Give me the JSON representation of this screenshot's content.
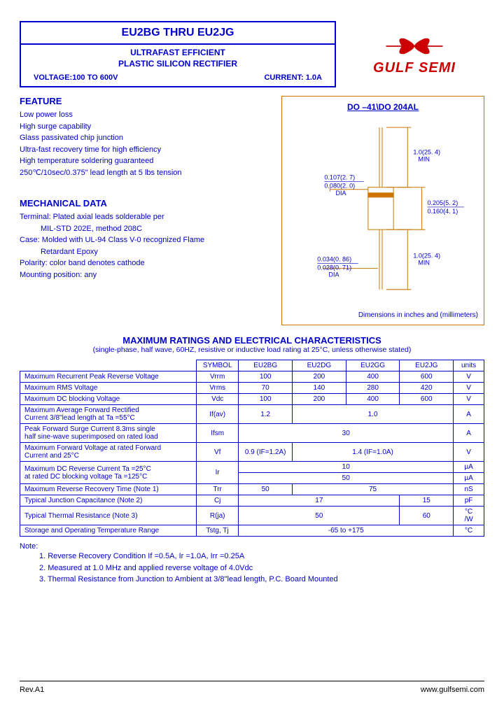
{
  "header": {
    "title": "EU2BG  THRU  EU2JG",
    "subtitle1": "ULTRAFAST EFFICIENT",
    "subtitle2": "PLASTIC  SILICON  RECTIFIER",
    "voltage_label": "VOLTAGE:100  TO  600V",
    "current_label": "CURRENT:  1.0A"
  },
  "logo": {
    "text": "GULF SEMI",
    "color": "#cc0000"
  },
  "features": {
    "title": "FEATURE",
    "lines": [
      "Low power loss",
      "High surge capability",
      "Glass passivated chip junction",
      "Ultra-fast recovery time for high efficiency",
      "High temperature soldering guaranteed",
      "250℃/10sec/0.375\" lead length at 5 lbs tension"
    ]
  },
  "mechanical": {
    "title": "MECHANICAL DATA",
    "lines": [
      {
        "text": "Terminal: Plated axial leads solderable per",
        "indent": false
      },
      {
        "text": "MIL-STD 202E, method 208C",
        "indent": true
      },
      {
        "text": "Case: Molded with UL-94 Class V-0 recognized Flame",
        "indent": false
      },
      {
        "text": "Retardant Epoxy",
        "indent": true
      },
      {
        "text": "Polarity: color band denotes cathode",
        "indent": false
      },
      {
        "text": "Mounting position: any",
        "indent": false
      }
    ]
  },
  "diagram": {
    "title": "DO –41\\DO  204AL",
    "dim1": "1.0(25. 4)",
    "dim1b": "MIN",
    "dim2a": "0.107(2. 7)",
    "dim2b": "0.080(2. 0)",
    "dim2c": "DIA",
    "dim3a": "0.205(5. 2)",
    "dim3b": "0.160(4. 1)",
    "dim4": "1.0(25. 4)",
    "dim4b": "MIN",
    "dim5a": "0.034(0. 86)",
    "dim5b": "0.028(0. 71)",
    "dim5c": "DIA",
    "footer": "Dimensions in inches and (millimeters)",
    "line_color": "#cc7700"
  },
  "ratings": {
    "title": "MAXIMUM  RATINGS  AND  ELECTRICAL  CHARACTERISTICS",
    "subtitle": "(single-phase, half wave, 60HZ, resistive or inductive load rating at 25°C, unless otherwise stated)",
    "columns": [
      "",
      "SYMBOL",
      "EU2BG",
      "EU2DG",
      "EU2GG",
      "EU2JG",
      "units"
    ],
    "rows": [
      {
        "label": "Maximum Recurrent Peak Reverse Voltage",
        "symbol": "Vrrm",
        "cells": [
          "100",
          "200",
          "400",
          "600"
        ],
        "unit": "V"
      },
      {
        "label": "Maximum RMS Voltage",
        "symbol": "Vrms",
        "cells": [
          "70",
          "140",
          "280",
          "420"
        ],
        "unit": "V"
      },
      {
        "label": "Maximum DC blocking Voltage",
        "symbol": "Vdc",
        "cells": [
          "100",
          "200",
          "400",
          "600"
        ],
        "unit": "V"
      },
      {
        "label": "Maximum Average Forward Rectified\nCurrent 3/8\"lead length at Ta =55°C",
        "symbol": "If(av)",
        "span": [
          {
            "text": "1.2",
            "cols": 1
          },
          {
            "text": "1.0",
            "cols": 3
          }
        ],
        "unit": "A"
      },
      {
        "label": "Peak Forward Surge Current 8.3ms single\nhalf sine-wave superimposed on rated load",
        "symbol": "Ifsm",
        "span": [
          {
            "text": "30",
            "cols": 4
          }
        ],
        "unit": "A"
      },
      {
        "label": "Maximum Forward Voltage at rated Forward\nCurrent and 25°C",
        "symbol": "Vf",
        "span": [
          {
            "text": "0.9 (IF=1.2A)",
            "cols": 1
          },
          {
            "text": "1.4  (IF=1.0A)",
            "cols": 3
          }
        ],
        "unit": "V"
      },
      {
        "label": "Maximum DC Reverse Current    Ta =25°C\nat rated DC blocking voltage     Ta =125°C",
        "symbol": "Ir",
        "doubleRow": [
          {
            "cells": [
              {
                "text": "10",
                "cols": 4
              }
            ],
            "unit": "µA"
          },
          {
            "cells": [
              {
                "text": "50",
                "cols": 4
              }
            ],
            "unit": "µA"
          }
        ]
      },
      {
        "label": "Maximum  Reverse Recovery Time    (Note 1)",
        "symbol": "Trr",
        "span": [
          {
            "text": "50",
            "cols": 1
          },
          {
            "text": "75",
            "cols": 3
          }
        ],
        "unit": "nS"
      },
      {
        "label": "Typical Junction Capacitance        (Note 2)",
        "symbol": "Cj",
        "span": [
          {
            "text": "17",
            "cols": 3
          },
          {
            "text": "15",
            "cols": 1
          }
        ],
        "unit": "pF"
      },
      {
        "label": "Typical Thermal Resistance           (Note 3)",
        "symbol": "R(ja)",
        "span": [
          {
            "text": "50",
            "cols": 3
          },
          {
            "text": "60",
            "cols": 1
          }
        ],
        "unit": "°C\n/W"
      },
      {
        "label": "Storage and Operating Temperature Range",
        "symbol": "Tstg, Tj",
        "span": [
          {
            "text": "-65 to +175",
            "cols": 4
          }
        ],
        "unit": "°C"
      }
    ]
  },
  "notes": {
    "title": "Note:",
    "lines": [
      "1. Reverse Recovery Condition If =0.5A, Ir =1.0A, Irr =0.25A",
      "2. Measured at 1.0 MHz and applied reverse voltage of 4.0Vdc",
      "3. Thermal Resistance from Junction to Ambient at 3/8\"lead length, P.C. Board Mounted"
    ]
  },
  "footer": {
    "left": "Rev.A1",
    "right": "www.gulfsemi.com"
  }
}
